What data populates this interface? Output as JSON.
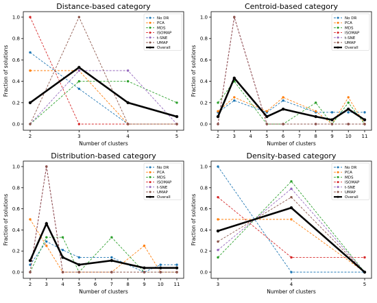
{
  "figure": {
    "series_colors": {
      "No DR": "#1f77b4",
      "PCA": "#ff7f0e",
      "MDS": "#2ca02c",
      "ISOMAP": "#d62728",
      "t-SNE": "#9467bd",
      "UMAP": "#8c564b",
      "Overall": "#000000"
    }
  },
  "chart_data": [
    {
      "type": "line",
      "title": "Distance-based category",
      "xlabel": "Number of clusters",
      "ylabel": "Fraction of solutions",
      "x": [
        2,
        3,
        4,
        5
      ],
      "xticks": [
        "2",
        "3",
        "4",
        "5"
      ],
      "yticks": [
        "0.0",
        "0.2",
        "0.4",
        "0.6",
        "0.8",
        "1.0"
      ],
      "ylim": [
        0,
        1
      ],
      "legend": "top-right",
      "series": [
        {
          "name": "No DR",
          "values": [
            0.67,
            0.33,
            0.0,
            0.0
          ]
        },
        {
          "name": "PCA",
          "values": [
            0.5,
            0.5,
            0.0,
            0.0
          ]
        },
        {
          "name": "MDS",
          "values": [
            0.0,
            0.4,
            0.4,
            0.2
          ]
        },
        {
          "name": "ISOMAP",
          "values": [
            1.0,
            0.0,
            0.0,
            0.0
          ]
        },
        {
          "name": "t-SNE",
          "values": [
            0.0,
            0.5,
            0.5,
            0.0
          ]
        },
        {
          "name": "UMAP",
          "values": [
            0.0,
            1.0,
            0.0,
            0.0
          ]
        },
        {
          "name": "Overall",
          "values": [
            0.2,
            0.53,
            0.2,
            0.07
          ]
        }
      ]
    },
    {
      "type": "line",
      "title": "Centroid-based category",
      "xlabel": "Number of clusters",
      "ylabel": "Fraction of solutions",
      "x": [
        2,
        3,
        5,
        6,
        8,
        9,
        10,
        11
      ],
      "xticks": [
        "2",
        "3",
        "4",
        "5",
        "6",
        "7",
        "8",
        "9",
        "10",
        "11"
      ],
      "yticks": [
        "0.0",
        "0.2",
        "0.4",
        "0.6",
        "0.8",
        "1.0"
      ],
      "ylim": [
        0,
        1
      ],
      "legend": "top-right",
      "series": [
        {
          "name": "No DR",
          "values": [
            0.11,
            0.22,
            0.11,
            0.22,
            0.11,
            0.11,
            0.11,
            0.11
          ]
        },
        {
          "name": "PCA",
          "values": [
            0.12,
            0.25,
            0.12,
            0.25,
            0.12,
            0.0,
            0.25,
            0.0
          ]
        },
        {
          "name": "MDS",
          "values": [
            0.2,
            0.4,
            0.0,
            0.0,
            0.2,
            0.0,
            0.2,
            0.0
          ]
        },
        {
          "name": "ISOMAP",
          "values": [
            0.0,
            1.0,
            0.0,
            0.0,
            0.0,
            0.0,
            0.0,
            0.0
          ]
        },
        {
          "name": "t-SNE",
          "values": [
            0.0,
            1.0,
            0.0,
            0.0,
            0.0,
            0.0,
            0.0,
            0.0
          ]
        },
        {
          "name": "UMAP",
          "values": [
            0.0,
            1.0,
            0.0,
            0.0,
            0.0,
            0.0,
            0.0,
            0.0
          ]
        },
        {
          "name": "Overall",
          "values": [
            0.07,
            0.43,
            0.07,
            0.14,
            0.07,
            0.04,
            0.14,
            0.04
          ]
        }
      ]
    },
    {
      "type": "line",
      "title": "Distribution-based category",
      "xlabel": "Number of clusters",
      "ylabel": "Fraction of solutions",
      "x": [
        2,
        3,
        4,
        5,
        7,
        9,
        10,
        11
      ],
      "xticks": [
        "2",
        "3",
        "4",
        "5",
        "6",
        "7",
        "8",
        "9",
        "10",
        "11"
      ],
      "yticks": [
        "0.0",
        "0.2",
        "0.4",
        "0.6",
        "0.8",
        "1.0"
      ],
      "ylim": [
        0,
        1
      ],
      "legend": "top-right",
      "series": [
        {
          "name": "No DR",
          "values": [
            0.07,
            0.29,
            0.21,
            0.14,
            0.14,
            0.0,
            0.07,
            0.07
          ]
        },
        {
          "name": "PCA",
          "values": [
            0.5,
            0.25,
            0.0,
            0.0,
            0.0,
            0.25,
            0.0,
            0.0
          ]
        },
        {
          "name": "MDS",
          "values": [
            0.0,
            0.33,
            0.33,
            0.0,
            0.33,
            0.0,
            0.0,
            0.0
          ]
        },
        {
          "name": "ISOMAP",
          "values": [
            0.0,
            1.0,
            0.0,
            0.0,
            0.0,
            0.0,
            0.0,
            0.0
          ]
        },
        {
          "name": "t-SNE",
          "values": [
            0.0,
            1.0,
            0.0,
            0.0,
            0.0,
            0.0,
            0.0,
            0.0
          ]
        },
        {
          "name": "UMAP",
          "values": [
            0.0,
            1.0,
            0.0,
            0.0,
            0.0,
            0.0,
            0.0,
            0.0
          ]
        },
        {
          "name": "Overall",
          "values": [
            0.11,
            0.46,
            0.14,
            0.07,
            0.11,
            0.04,
            0.04,
            0.04
          ]
        }
      ]
    },
    {
      "type": "line",
      "title": "Density-based category",
      "xlabel": "Number of clusters",
      "ylabel": "Fraction of solutions",
      "x": [
        3,
        4,
        5
      ],
      "xticks": [
        "3",
        "4",
        "5"
      ],
      "yticks": [
        "0.0",
        "0.2",
        "0.4",
        "0.6",
        "0.8",
        "1.0"
      ],
      "ylim": [
        0,
        1
      ],
      "legend": "top-right",
      "series": [
        {
          "name": "No DR",
          "values": [
            1.0,
            0.0,
            0.0
          ]
        },
        {
          "name": "PCA",
          "values": [
            0.5,
            0.5,
            0.0
          ]
        },
        {
          "name": "MDS",
          "values": [
            0.14,
            0.86,
            0.0
          ]
        },
        {
          "name": "ISOMAP",
          "values": [
            0.71,
            0.14,
            0.14
          ]
        },
        {
          "name": "t-SNE",
          "values": [
            0.21,
            0.79,
            0.0
          ]
        },
        {
          "name": "UMAP",
          "values": [
            0.29,
            0.71,
            0.0
          ]
        },
        {
          "name": "Overall",
          "values": [
            0.39,
            0.61,
            0.0
          ]
        }
      ]
    }
  ]
}
